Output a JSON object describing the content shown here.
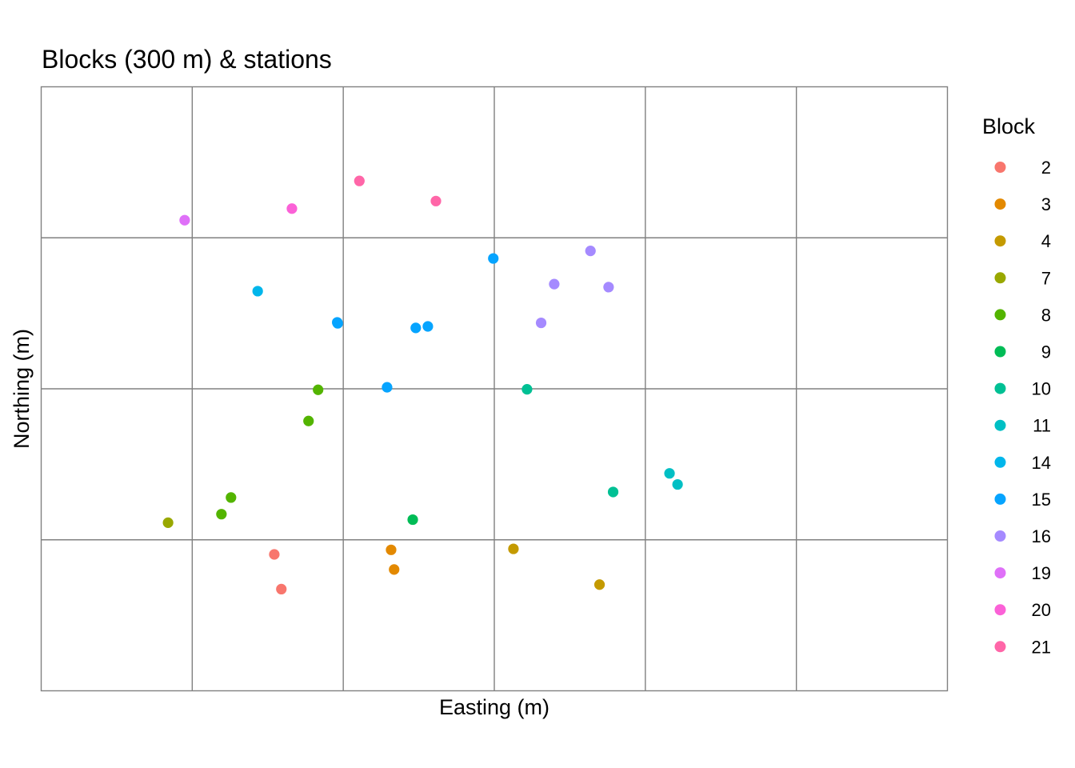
{
  "chart_data": {
    "type": "scatter",
    "title": "Blocks (300 m) & stations",
    "xlabel": "Easting (m)",
    "ylabel": "Northing (m)",
    "block_size_m": 300,
    "xlim": [
      0,
      1800
    ],
    "ylim": [
      0,
      1200
    ],
    "x_ticks_shown": false,
    "y_ticks_shown": false,
    "grid": true,
    "legend": {
      "title": "Block",
      "placement": "right"
    },
    "series": [
      {
        "name": "2",
        "color": "#F8766D",
        "points": [
          [
            463,
            271
          ],
          [
            477,
            202
          ]
        ]
      },
      {
        "name": "3",
        "color": "#E38900",
        "points": [
          [
            695,
            280
          ],
          [
            701,
            241
          ]
        ]
      },
      {
        "name": "4",
        "color": "#C49A00",
        "points": [
          [
            938,
            282
          ],
          [
            1109,
            211
          ]
        ]
      },
      {
        "name": "7",
        "color": "#99A800",
        "points": [
          [
            252,
            334
          ]
        ]
      },
      {
        "name": "8",
        "color": "#53B400",
        "points": [
          [
            377,
            384
          ],
          [
            358,
            351
          ],
          [
            531,
            536
          ],
          [
            550,
            598
          ]
        ]
      },
      {
        "name": "9",
        "color": "#00BC56",
        "points": [
          [
            738,
            340
          ]
        ]
      },
      {
        "name": "10",
        "color": "#00C094",
        "points": [
          [
            965,
            599
          ],
          [
            1136,
            395
          ]
        ]
      },
      {
        "name": "11",
        "color": "#00BFC4",
        "points": [
          [
            1248,
            432
          ],
          [
            1264,
            410
          ]
        ]
      },
      {
        "name": "14",
        "color": "#00B6EB",
        "points": [
          [
            430,
            794
          ]
        ]
      },
      {
        "name": "15",
        "color": "#06A4FF",
        "points": [
          [
            588,
            732
          ],
          [
            589,
            730
          ],
          [
            744,
            721
          ],
          [
            768,
            724
          ],
          [
            687,
            603
          ],
          [
            898,
            859
          ]
        ]
      },
      {
        "name": "16",
        "color": "#A58AFF",
        "points": [
          [
            1019,
            808
          ],
          [
            1127,
            802
          ],
          [
            993,
            731
          ],
          [
            1091,
            874
          ]
        ]
      },
      {
        "name": "19",
        "color": "#DF70F8",
        "points": [
          [
            285,
            935
          ]
        ]
      },
      {
        "name": "20",
        "color": "#FB61D7",
        "points": [
          [
            498,
            958
          ]
        ]
      },
      {
        "name": "21",
        "color": "#FF66A8",
        "points": [
          [
            632,
            1013
          ],
          [
            784,
            973
          ]
        ]
      }
    ]
  }
}
